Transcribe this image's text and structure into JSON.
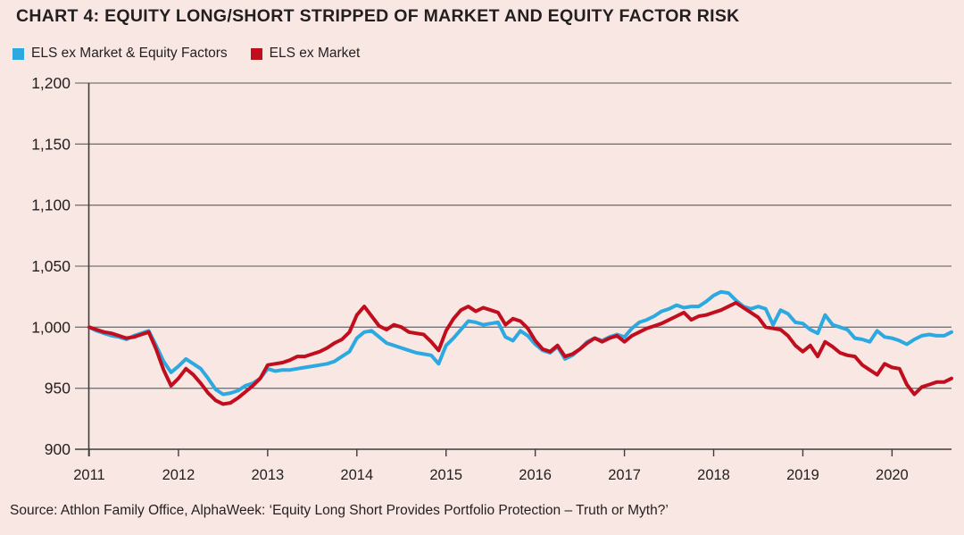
{
  "title": "CHART 4: EQUITY LONG/SHORT STRIPPED OF MARKET AND EQUITY FACTOR RISK",
  "source": "Source: Athlon Family Office, AlphaWeek: ‘Equity Long Short Provides Portfolio Protection – Truth or Myth?’",
  "colors": {
    "background": "#f8e7e2",
    "text": "#231f20",
    "gridline": "#757575",
    "axis": "#3d3d3d",
    "series_blue": "#2da9e1",
    "series_red": "#c10e1f"
  },
  "chart_data": {
    "type": "line",
    "title": "CHART 4: EQUITY LONG/SHORT STRIPPED OF MARKET AND EQUITY FACTOR RISK",
    "xlabel": "",
    "ylabel": "",
    "ylim": [
      900,
      1200
    ],
    "y_ticks": [
      1200,
      1150,
      1100,
      1050,
      1000,
      950,
      900
    ],
    "y_tick_labels": [
      "1,200",
      "1,150",
      "1,100",
      "1,050",
      "1,000",
      "950",
      "900"
    ],
    "x_tick_labels": [
      "2011",
      "2012",
      "2013",
      "2014",
      "2015",
      "2016",
      "2017",
      "2018",
      "2019",
      "2020"
    ],
    "x_frequency": "monthly",
    "x_start": "2011-01",
    "x_end": "2020-09",
    "grid": "horizontal",
    "legend_position": "top-left",
    "series": [
      {
        "name": "ELS ex Market & Equity Factors",
        "color": "#2da9e1",
        "values": [
          1000,
          997,
          995,
          993,
          992,
          990,
          993,
          995,
          997,
          985,
          972,
          963,
          968,
          974,
          970,
          966,
          958,
          949,
          945,
          946,
          948,
          952,
          954,
          958,
          966,
          964,
          965,
          965,
          966,
          967,
          968,
          969,
          970,
          972,
          976,
          980,
          991,
          996,
          997,
          992,
          987,
          985,
          983,
          981,
          979,
          978,
          977,
          970,
          985,
          991,
          998,
          1005,
          1004,
          1002,
          1003,
          1004,
          992,
          989,
          997,
          993,
          986,
          981,
          979,
          984,
          974,
          977,
          982,
          988,
          991,
          989,
          992,
          994,
          992,
          999,
          1004,
          1006,
          1009,
          1013,
          1015,
          1018,
          1016,
          1017,
          1017,
          1021,
          1026,
          1029,
          1028,
          1022,
          1017,
          1015,
          1017,
          1015,
          1002,
          1014,
          1011,
          1004,
          1003,
          998,
          995,
          1010,
          1002,
          1000,
          998,
          991,
          990,
          988,
          997,
          992,
          991,
          989,
          986,
          990,
          993,
          994,
          993,
          993,
          996
        ]
      },
      {
        "name": "ELS ex Market",
        "color": "#c10e1f",
        "values": [
          1000,
          998,
          996,
          995,
          993,
          991,
          992,
          994,
          996,
          982,
          965,
          952,
          958,
          966,
          961,
          954,
          946,
          940,
          937,
          938,
          942,
          947,
          952,
          958,
          969,
          970,
          971,
          973,
          976,
          976,
          978,
          980,
          983,
          987,
          990,
          996,
          1010,
          1017,
          1009,
          1001,
          998,
          1002,
          1000,
          996,
          995,
          994,
          988,
          981,
          997,
          1007,
          1014,
          1017,
          1013,
          1016,
          1014,
          1012,
          1002,
          1007,
          1005,
          999,
          989,
          982,
          980,
          985,
          976,
          978,
          982,
          987,
          991,
          988,
          991,
          993,
          988,
          993,
          996,
          999,
          1001,
          1003,
          1006,
          1009,
          1012,
          1006,
          1009,
          1010,
          1012,
          1014,
          1017,
          1020,
          1016,
          1012,
          1008,
          1000,
          999,
          998,
          993,
          985,
          980,
          985,
          976,
          988,
          984,
          979,
          977,
          976,
          969,
          965,
          961,
          970,
          967,
          966,
          953,
          945,
          951,
          953,
          955,
          955,
          958
        ]
      }
    ]
  }
}
